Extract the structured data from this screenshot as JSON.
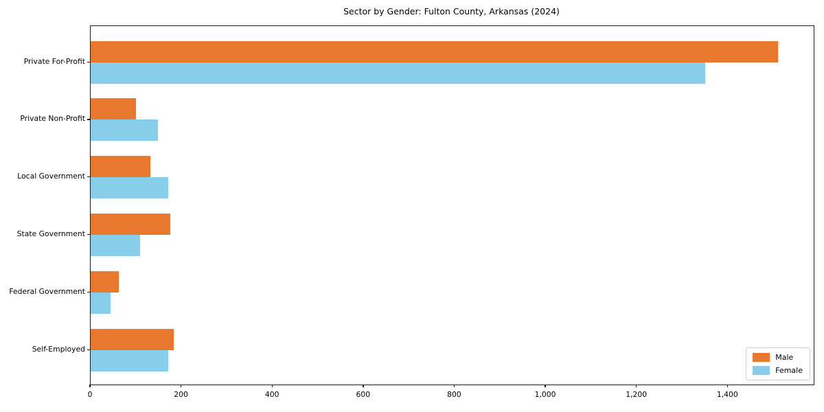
{
  "chart_data": {
    "type": "bar",
    "orientation": "horizontal",
    "title": "Sector by Gender: Fulton County, Arkansas (2024)",
    "xlabel": "",
    "ylabel": "",
    "categories": [
      "Private For-Profit",
      "Private Non-Profit",
      "Local Government",
      "State Government",
      "Federal Government",
      "Self-Employed"
    ],
    "series": [
      {
        "name": "Male",
        "color": "#e8782e",
        "values": [
          1510,
          100,
          131,
          175,
          62,
          183
        ]
      },
      {
        "name": "Female",
        "color": "#87ceeb",
        "values": [
          1350,
          148,
          171,
          108,
          44,
          170
        ]
      }
    ],
    "xlim": [
      0,
      1588
    ],
    "xticks": [
      0,
      200,
      400,
      600,
      800,
      1000,
      1200,
      1400
    ],
    "xtick_labels": [
      "0",
      "200",
      "400",
      "600",
      "800",
      "1,000",
      "1,200",
      "1,400"
    ],
    "grid": false,
    "legend_position": "lower right",
    "background_color": "#ffffff",
    "spine_color": "#1c1c1c"
  }
}
